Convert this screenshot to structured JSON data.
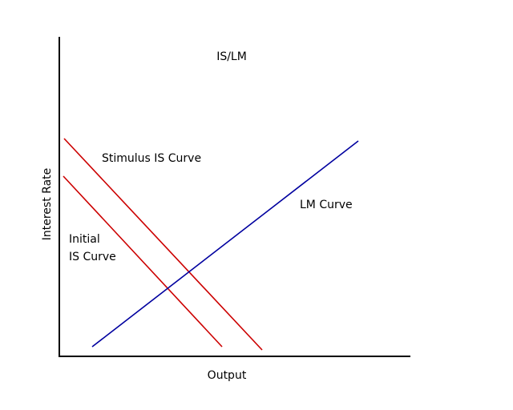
{
  "diagram": {
    "title": "IS/LM",
    "x_axis_label": "Output",
    "y_axis_label": "Interest Rate",
    "curves": [
      {
        "id": "stimulus-is",
        "label_lines": [
          "Stimulus IS Curve"
        ],
        "color": "#cc0000"
      },
      {
        "id": "initial-is",
        "label_lines": [
          "Initial",
          "IS Curve"
        ],
        "color": "#cc0000"
      },
      {
        "id": "lm",
        "label_lines": [
          "LM Curve"
        ],
        "color": "#00009f"
      }
    ]
  }
}
